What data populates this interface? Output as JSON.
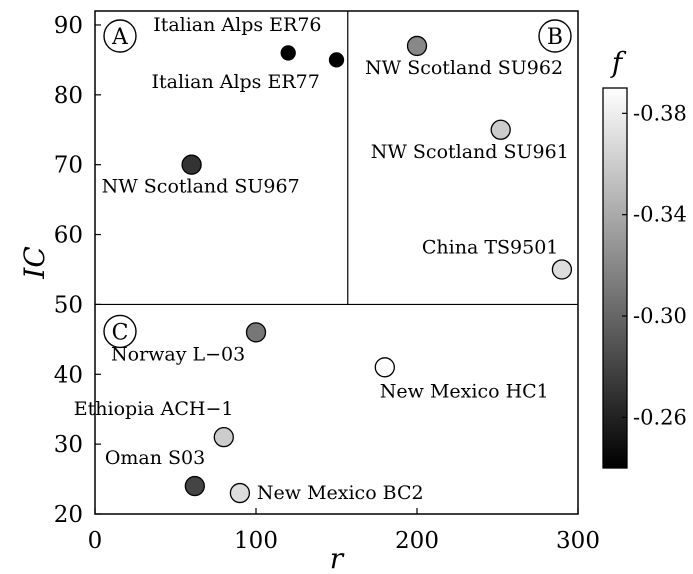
{
  "chart_data": {
    "type": "scatter",
    "xlabel": "r",
    "ylabel": "IC",
    "xlim": [
      0,
      300
    ],
    "ylim": [
      20,
      92
    ],
    "x_ticks": [
      0,
      100,
      200,
      300
    ],
    "y_ticks": [
      20,
      30,
      40,
      50,
      60,
      70,
      80,
      90
    ],
    "grid": false,
    "dividers": {
      "horizontal_y": 50,
      "vertical_x": 157
    },
    "panel_labels": [
      "A",
      "B",
      "C"
    ],
    "colorbar": {
      "label": "f",
      "range": [
        -0.39,
        -0.24
      ],
      "ticks": [
        -0.38,
        -0.34,
        -0.3,
        -0.26
      ],
      "tick_labels": [
        "-0.38",
        "-0.34",
        "-0.30",
        "-0.26"
      ],
      "colormap": "gray (dark = -0.24, light = -0.39)"
    },
    "points": [
      {
        "label": "Italian Alps ER76",
        "x": 120,
        "y": 86,
        "f": -0.24,
        "size": "small"
      },
      {
        "label": "Italian Alps ER77",
        "x": 150,
        "y": 85,
        "f": -0.24,
        "size": "small"
      },
      {
        "label": "NW Scotland SU967",
        "x": 60,
        "y": 70,
        "f": -0.27,
        "size": "large"
      },
      {
        "label": "NW Scotland SU962",
        "x": 200,
        "y": 87,
        "f": -0.32,
        "size": "large"
      },
      {
        "label": "NW Scotland SU961",
        "x": 252,
        "y": 75,
        "f": -0.36,
        "size": "large"
      },
      {
        "label": "China TS9501",
        "x": 290,
        "y": 55,
        "f": -0.37,
        "size": "large"
      },
      {
        "label": "Norway L−03",
        "x": 100,
        "y": 46,
        "f": -0.31,
        "size": "large"
      },
      {
        "label": "New Mexico HC1",
        "x": 180,
        "y": 41,
        "f": -0.39,
        "size": "large"
      },
      {
        "label": "Ethiopia ACH−1",
        "x": 80,
        "y": 31,
        "f": -0.36,
        "size": "large"
      },
      {
        "label": "Oman S03",
        "x": 62,
        "y": 24,
        "f": -0.28,
        "size": "large"
      },
      {
        "label": "New Mexico BC2",
        "x": 90,
        "y": 23,
        "f": -0.37,
        "size": "large"
      }
    ]
  }
}
